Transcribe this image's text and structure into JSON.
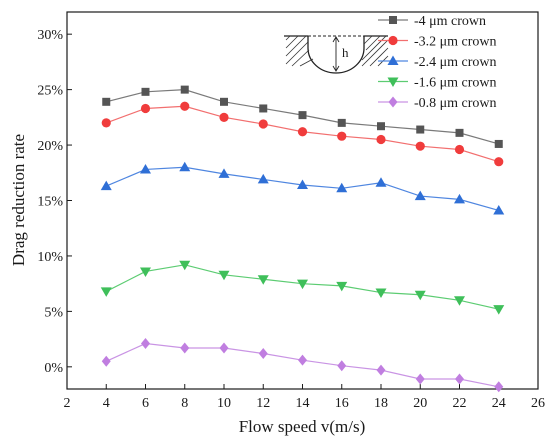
{
  "chart_data": {
    "type": "line",
    "title": "",
    "xlabel": "Flow speed v(m/s)",
    "ylabel": "Drag reduction rate",
    "xlim": [
      2,
      26
    ],
    "ylim": [
      -2,
      32
    ],
    "x_ticks": [
      2,
      4,
      6,
      8,
      10,
      12,
      14,
      16,
      18,
      20,
      22,
      24,
      26
    ],
    "y_ticks": [
      0,
      5,
      10,
      15,
      20,
      25,
      30
    ],
    "y_tick_labels": [
      "0%",
      "5%",
      "10%",
      "15%",
      "20%",
      "25%",
      "30%"
    ],
    "grid": false,
    "legend_position": "top-right",
    "x": [
      4,
      6,
      8,
      10,
      12,
      14,
      16,
      18,
      20,
      22,
      24
    ],
    "series": [
      {
        "name": "-4    μm crown",
        "color": "#555555",
        "line_color": "#7a7a7a",
        "marker": "square",
        "values": [
          23.9,
          24.8,
          25.0,
          23.9,
          23.3,
          22.7,
          22.0,
          21.7,
          21.4,
          21.1,
          20.1
        ]
      },
      {
        "name": "-3.2 μm crown",
        "color": "#f03c3c",
        "line_color": "#f26f6f",
        "marker": "circle",
        "values": [
          22.0,
          23.3,
          23.5,
          22.5,
          21.9,
          21.2,
          20.8,
          20.5,
          19.9,
          19.6,
          18.5
        ]
      },
      {
        "name": "-2.4 μm crown",
        "color": "#2f6fd6",
        "line_color": "#4f86e0",
        "marker": "triangle-up",
        "values": [
          16.3,
          17.8,
          18.0,
          17.4,
          16.9,
          16.4,
          16.1,
          16.6,
          15.4,
          15.1,
          14.1
        ]
      },
      {
        "name": "-1.6 μm crown",
        "color": "#3fbf5a",
        "line_color": "#5ccc72",
        "marker": "triangle-down",
        "values": [
          6.8,
          8.6,
          9.2,
          8.3,
          7.9,
          7.5,
          7.3,
          6.7,
          6.5,
          6.0,
          5.2
        ]
      },
      {
        "name": "-0.8 μm crown",
        "color": "#c07ee0",
        "line_color": "#c994e4",
        "marker": "diamond",
        "values": [
          0.5,
          2.1,
          1.7,
          1.7,
          1.2,
          0.6,
          0.1,
          -0.3,
          -1.1,
          -1.1,
          -1.8
        ]
      }
    ],
    "inset": {
      "label": "h",
      "description_icon": "crown-profile-diagram"
    }
  }
}
